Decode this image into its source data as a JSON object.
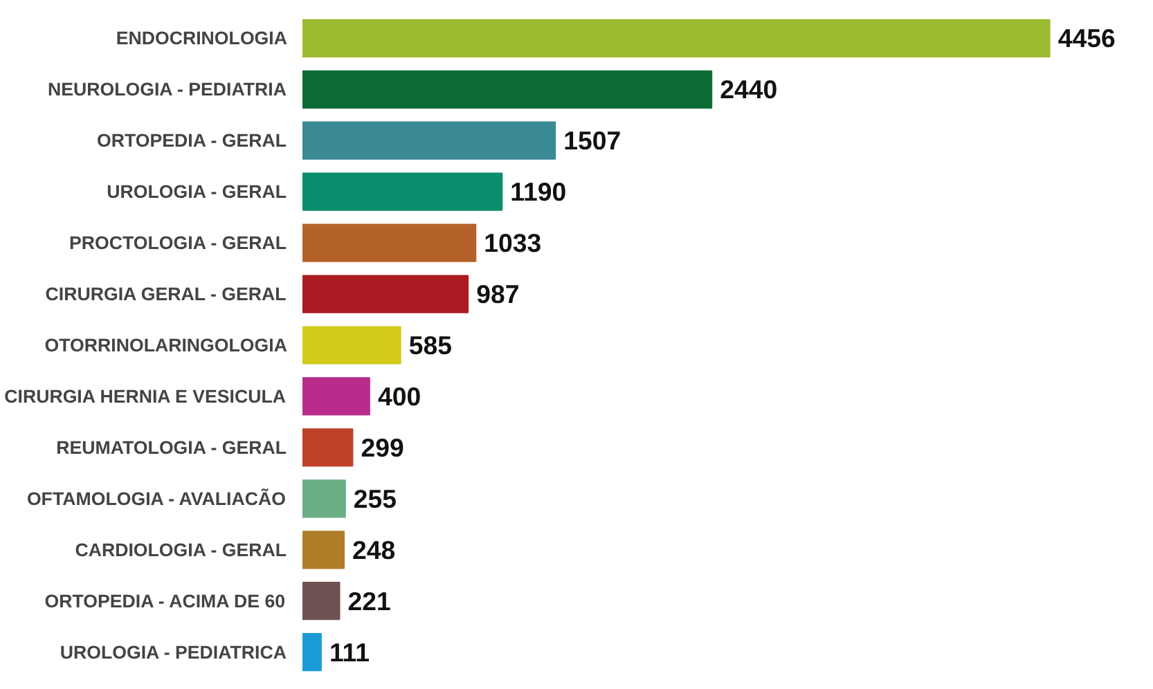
{
  "chart_data": {
    "type": "bar",
    "orientation": "horizontal",
    "data_labels": true,
    "categories": [
      "ENDOCRINOLOGIA",
      "NEUROLOGIA - PEDIATRIA",
      "ORTOPEDIA - GERAL",
      "UROLOGIA - GERAL",
      "PROCTOLOGIA - GERAL",
      "CIRURGIA GERAL - GERAL",
      "OTORRINOLARINGOLOGIA",
      "CIRURGIA HERNIA E VESICULA",
      "REUMATOLOGIA - GERAL",
      "OFTAMOLOGIA - AVALIACÃO",
      "CARDIOLOGIA - GERAL",
      "ORTOPEDIA - ACIMA DE 60",
      "UROLOGIA - PEDIATRICA"
    ],
    "values": [
      4456,
      2440,
      1507,
      1190,
      1033,
      987,
      585,
      400,
      299,
      255,
      248,
      221,
      111
    ],
    "colors": [
      "#9bbb30",
      "#0f6b35",
      "#3a8a96",
      "#0a8c6e",
      "#b5622a",
      "#aa1c22",
      "#d4cb1a",
      "#b82d8c",
      "#c0402a",
      "#6aae84",
      "#b07e28",
      "#6e5252",
      "#1a9bd6"
    ]
  }
}
